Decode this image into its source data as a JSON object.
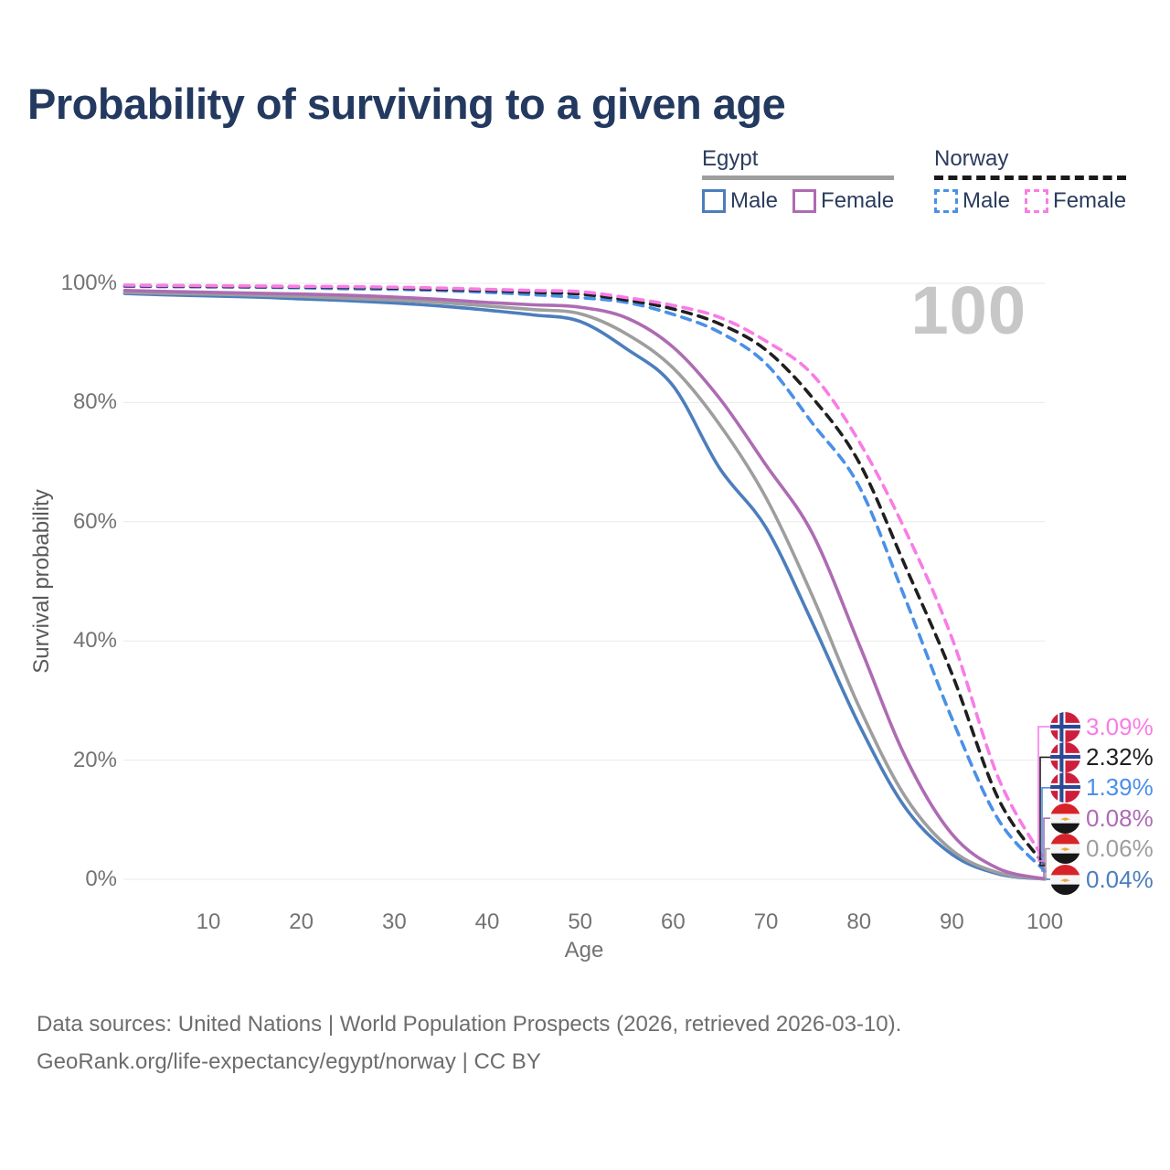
{
  "page": {
    "title": "Probability of surviving to a given age"
  },
  "legend": {
    "groups": [
      {
        "label": "Egypt",
        "underline": {
          "style": "solid",
          "color": "#9e9e9e"
        },
        "items": [
          {
            "label": "Male",
            "color": "#4c7ebd",
            "dashed": false,
            "series_id": "egypt-male"
          },
          {
            "label": "Female",
            "color": "#ae6bb3",
            "dashed": false,
            "series_id": "egypt-female"
          }
        ]
      },
      {
        "label": "Norway",
        "underline": {
          "style": "dashed",
          "color": "#1a1a1a"
        },
        "items": [
          {
            "label": "Male",
            "color": "#4a90e8",
            "dashed": true,
            "series_id": "norway-male"
          },
          {
            "label": "Female",
            "color": "#f97ce5",
            "dashed": true,
            "series_id": "norway-female"
          }
        ]
      }
    ]
  },
  "chart_data": {
    "type": "line",
    "title": "Probability of surviving to a given age",
    "xlabel": "Age",
    "ylabel": "Survival probability",
    "xlim": [
      0,
      100
    ],
    "ylim": [
      0,
      100
    ],
    "grid": "horizontal",
    "legend_position": "top-right",
    "hover_age": "100",
    "xticks": [
      {
        "value": 10,
        "label": "10"
      },
      {
        "value": 20,
        "label": "20"
      },
      {
        "value": 30,
        "label": "30"
      },
      {
        "value": 40,
        "label": "40"
      },
      {
        "value": 50,
        "label": "50"
      },
      {
        "value": 60,
        "label": "60"
      },
      {
        "value": 70,
        "label": "70"
      },
      {
        "value": 80,
        "label": "80"
      },
      {
        "value": 90,
        "label": "90"
      },
      {
        "value": 100,
        "label": "100"
      }
    ],
    "yticks": [
      {
        "value": 0,
        "label": "0%"
      },
      {
        "value": 20,
        "label": "20%"
      },
      {
        "value": 40,
        "label": "40%"
      },
      {
        "value": 60,
        "label": "60%"
      },
      {
        "value": 80,
        "label": "80%"
      },
      {
        "value": 100,
        "label": "100%"
      }
    ],
    "ages": [
      1,
      5,
      10,
      15,
      20,
      25,
      30,
      35,
      40,
      45,
      50,
      55,
      60,
      65,
      70,
      75,
      80,
      85,
      90,
      95,
      100
    ],
    "series": [
      {
        "id": "egypt-male",
        "country": "Egypt",
        "sex": "male",
        "style": "solid",
        "color": "#4c7ebd",
        "end_label": "0.04%",
        "values": [
          98.3,
          98.1,
          97.9,
          97.7,
          97.4,
          97.1,
          96.7,
          96.2,
          95.5,
          94.7,
          93.6,
          89.0,
          82.8,
          69.0,
          59.0,
          43.0,
          26.0,
          12.0,
          4.2,
          0.9,
          0.04
        ]
      },
      {
        "id": "egypt-combined",
        "country": "Egypt",
        "sex": "combined",
        "style": "solid",
        "color": "#9e9e9e",
        "end_label": "0.06%",
        "values": [
          98.5,
          98.35,
          98.2,
          98.0,
          97.8,
          97.5,
          97.2,
          96.8,
          96.2,
          95.6,
          94.9,
          91.5,
          85.8,
          76.3,
          64.0,
          47.5,
          29.0,
          13.8,
          4.9,
          1.1,
          0.06
        ]
      },
      {
        "id": "egypt-female",
        "country": "Egypt",
        "sex": "female",
        "style": "solid",
        "color": "#ae6bb3",
        "end_label": "0.08%",
        "values": [
          98.8,
          98.65,
          98.5,
          98.35,
          98.2,
          98.0,
          97.7,
          97.3,
          96.8,
          96.4,
          96.0,
          94.2,
          89.3,
          80.7,
          69.5,
          58.0,
          39.5,
          20.5,
          7.6,
          1.8,
          0.08
        ]
      },
      {
        "id": "norway-male",
        "country": "Norway",
        "sex": "male",
        "style": "dashed",
        "color": "#4a90e8",
        "end_label": "1.39%",
        "values": [
          99.5,
          99.45,
          99.4,
          99.35,
          99.25,
          99.1,
          99.0,
          98.8,
          98.5,
          98.1,
          97.6,
          96.8,
          94.8,
          91.8,
          86.5,
          76.5,
          66.0,
          47.0,
          27.0,
          10.0,
          1.39
        ]
      },
      {
        "id": "norway-combined",
        "country": "Norway",
        "sex": "combined",
        "style": "dashed",
        "color": "#1f1f1f",
        "end_label": "2.32%",
        "values": [
          99.6,
          99.55,
          99.5,
          99.45,
          99.4,
          99.3,
          99.2,
          99.0,
          98.8,
          98.5,
          98.2,
          97.2,
          95.7,
          93.2,
          88.8,
          80.8,
          70.0,
          52.5,
          34.5,
          13.5,
          2.32
        ]
      },
      {
        "id": "norway-female",
        "country": "Norway",
        "sex": "female",
        "style": "dashed",
        "color": "#f97ce5",
        "end_label": "3.09%",
        "values": [
          99.7,
          99.65,
          99.6,
          99.55,
          99.5,
          99.45,
          99.35,
          99.2,
          99.0,
          98.8,
          98.6,
          97.6,
          96.3,
          94.3,
          90.3,
          84.7,
          73.5,
          58.5,
          40.5,
          17.0,
          3.09
        ]
      }
    ]
  },
  "footer": {
    "line1": "Data sources: United Nations | World Population Prospects (2026, retrieved 2026-03-10).",
    "line2": "GeoRank.org/life-expectancy/egypt/norway | CC BY"
  }
}
